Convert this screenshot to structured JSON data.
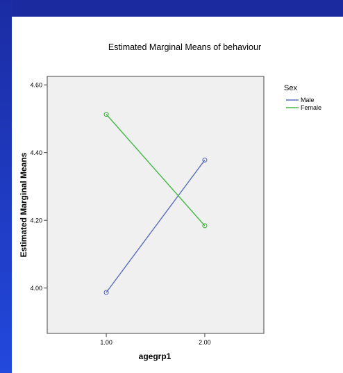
{
  "chart_data": {
    "type": "line",
    "title": "Estimated Marginal Means of behaviour",
    "xlabel": "agegrp1",
    "ylabel": "Estimated Marginal Means",
    "x": [
      1.0,
      2.0
    ],
    "x_tick_labels": [
      "1.00",
      "2.00"
    ],
    "xlim": [
      0.4,
      2.6
    ],
    "ylim": [
      3.866,
      4.625
    ],
    "y_ticks": [
      4.0,
      4.2,
      4.4,
      4.6
    ],
    "y_tick_labels": [
      "4.00",
      "4.20",
      "4.40",
      "4.60"
    ],
    "grid": false,
    "legend": {
      "title": "Sex",
      "position": "top-right"
    },
    "series": [
      {
        "name": "Male",
        "values": [
          3.987,
          4.378
        ],
        "color": "#5b6dbe"
      },
      {
        "name": "Female",
        "values": [
          4.513,
          4.184
        ],
        "color": "#44b844"
      }
    ],
    "plot_background": "#f0f0f0"
  }
}
